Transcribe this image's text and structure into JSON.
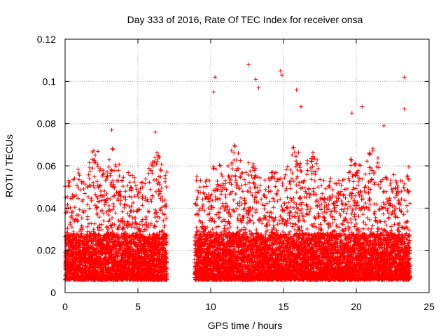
{
  "chart_data": {
    "type": "scatter",
    "title": "Day 333 of 2016, Rate Of TEC Index for receiver onsa",
    "xlabel": "GPS time / hours",
    "ylabel": "ROTI / TECUs",
    "xlim": [
      0,
      25
    ],
    "ylim": [
      0,
      0.12
    ],
    "xticks": [
      0,
      5,
      10,
      15,
      20,
      25
    ],
    "xtick_labels": [
      "0",
      "5",
      "10",
      "15",
      "20",
      "25"
    ],
    "yticks": [
      0,
      0.02,
      0.04,
      0.06,
      0.08,
      0.1,
      0.12
    ],
    "ytick_labels": [
      "0",
      "0.02",
      "0.04",
      "0.06",
      "0.08",
      "0.1",
      "0.12"
    ],
    "grid": true,
    "marker": "+",
    "color": "#ff0000",
    "series": [
      {
        "segments": [
          {
            "x_range": [
              0,
              7.0
            ],
            "y_range": [
              0.002,
              0.077
            ]
          },
          {
            "x_range": [
              8.9,
              23.7
            ],
            "y_range": [
              0.002,
              0.108
            ]
          }
        ],
        "highlighted_points": [
          {
            "x": 12.6,
            "y": 0.108
          },
          {
            "x": 14.8,
            "y": 0.105
          },
          {
            "x": 14.9,
            "y": 0.103
          },
          {
            "x": 10.3,
            "y": 0.102
          },
          {
            "x": 23.3,
            "y": 0.102
          },
          {
            "x": 13.1,
            "y": 0.101
          },
          {
            "x": 13.3,
            "y": 0.097
          },
          {
            "x": 15.9,
            "y": 0.096
          },
          {
            "x": 10.2,
            "y": 0.095
          },
          {
            "x": 23.3,
            "y": 0.087
          },
          {
            "x": 20.4,
            "y": 0.088
          },
          {
            "x": 16.2,
            "y": 0.088
          },
          {
            "x": 19.7,
            "y": 0.085
          },
          {
            "x": 3.2,
            "y": 0.077
          },
          {
            "x": 6.2,
            "y": 0.076
          },
          {
            "x": 21.9,
            "y": 0.079
          }
        ]
      }
    ]
  }
}
